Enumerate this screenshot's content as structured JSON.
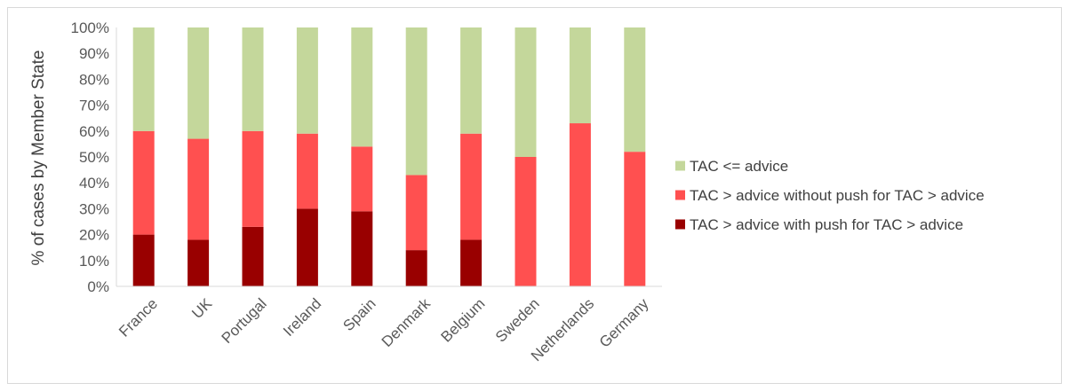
{
  "chart_data": {
    "type": "bar",
    "stacked": true,
    "percent_stacked": true,
    "categories": [
      "France",
      "UK",
      "Portugal",
      "Ireland",
      "Spain",
      "Denmark",
      "Belgium",
      "Sweden",
      "Netherlands",
      "Germany"
    ],
    "series": [
      {
        "name": "TAC > advice with push for TAC > advice",
        "color": "#990000",
        "values": [
          20,
          18,
          23,
          30,
          29,
          14,
          18,
          0,
          0,
          0
        ]
      },
      {
        "name": "TAC > advice without push for TAC > advice",
        "color": "#ff5050",
        "values": [
          40,
          39,
          37,
          29,
          25,
          29,
          41,
          50,
          63,
          52
        ]
      },
      {
        "name": "TAC <= advice",
        "color": "#c4d79b",
        "values": [
          40,
          43,
          40,
          41,
          46,
          57,
          41,
          50,
          37,
          48
        ]
      }
    ],
    "legend_order": [
      2,
      1,
      0
    ],
    "title": "",
    "xlabel": "",
    "ylabel": "% of cases by Member State",
    "ylim": [
      0,
      100
    ],
    "yticks": [
      "0%",
      "10%",
      "20%",
      "30%",
      "40%",
      "50%",
      "60%",
      "70%",
      "80%",
      "90%",
      "100%"
    ],
    "legend_position": "right",
    "grid": false
  }
}
